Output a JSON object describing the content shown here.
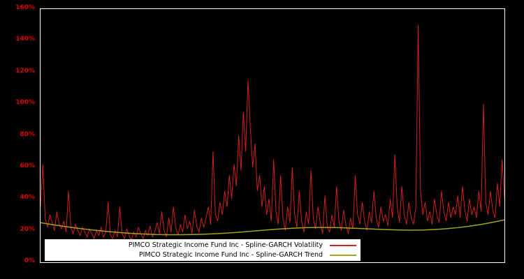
{
  "y_axis": {
    "ticks": [
      "0%",
      "20%",
      "40%",
      "60%",
      "80%",
      "100%",
      "120%",
      "140%",
      "160%"
    ],
    "tick_values": [
      0,
      20,
      40,
      60,
      80,
      100,
      120,
      140,
      160
    ],
    "min": 0,
    "max": 160,
    "color": "#dd0000"
  },
  "legend": {
    "background": "#ffffff",
    "position": "bottom-left"
  },
  "chart_data": {
    "type": "line",
    "title": "",
    "xlabel": "",
    "ylabel": "",
    "grid": false,
    "background": "#000000",
    "ylim": [
      0,
      160
    ],
    "y_unit": "percent",
    "legend_position": "bottom-left",
    "series": [
      {
        "name": "PIMCO Strategic Income Fund Inc - Spline-GARCH Volatility",
        "color": "#d21f1f",
        "stroke_width": 1,
        "values": [
          35,
          62,
          28,
          22,
          30,
          25,
          20,
          32,
          24,
          21,
          26,
          19,
          45,
          22,
          18,
          24,
          20,
          17,
          22,
          19,
          16,
          21,
          18,
          15,
          20,
          17,
          22,
          16,
          19,
          38,
          17,
          15,
          20,
          16,
          35,
          18,
          15,
          21,
          17,
          14,
          19,
          16,
          22,
          18,
          15,
          20,
          17,
          23,
          16,
          19,
          25,
          18,
          32,
          20,
          16,
          28,
          19,
          35,
          22,
          17,
          24,
          19,
          30,
          21,
          26,
          18,
          33,
          23,
          19,
          28,
          22,
          28,
          35,
          24,
          70,
          30,
          26,
          38,
          30,
          45,
          35,
          55,
          40,
          62,
          48,
          80,
          58,
          95,
          70,
          115,
          85,
          60,
          75,
          45,
          55,
          35,
          48,
          30,
          40,
          26,
          65,
          32,
          24,
          55,
          28,
          20,
          35,
          25,
          60,
          30,
          22,
          45,
          26,
          19,
          32,
          24,
          58,
          28,
          21,
          35,
          25,
          18,
          42,
          23,
          19,
          30,
          22,
          48,
          26,
          20,
          33,
          24,
          18,
          28,
          21,
          55,
          30,
          24,
          38,
          26,
          20,
          32,
          25,
          45,
          28,
          22,
          35,
          26,
          30,
          23,
          40,
          28,
          68,
          35,
          25,
          48,
          30,
          24,
          38,
          28,
          24,
          35,
          150,
          45,
          30,
          38,
          26,
          32,
          24,
          40,
          30,
          25,
          45,
          32,
          26,
          38,
          28,
          35,
          30,
          42,
          28,
          48,
          33,
          26,
          40,
          30,
          35,
          28,
          45,
          32,
          100,
          38,
          30,
          45,
          33,
          28,
          50,
          35,
          65,
          40
        ]
      },
      {
        "name": "PIMCO Strategic Income Fund Inc - Spline-GARCH Trend",
        "color": "#a8a418",
        "stroke_width": 1.5,
        "values": [
          25.0,
          23.8,
          22.7,
          21.7,
          20.8,
          20.0,
          19.3,
          18.7,
          18.2,
          17.8,
          17.5,
          17.4,
          17.4,
          17.5,
          17.7,
          18.0,
          18.4,
          18.9,
          19.5,
          20.1,
          20.7,
          21.2,
          21.6,
          21.9,
          22.0,
          22.0,
          21.8,
          21.5,
          21.2,
          20.9,
          20.6,
          20.4,
          20.3,
          20.4,
          20.7,
          21.2,
          21.9,
          22.8,
          23.9,
          25.3,
          26.8
        ]
      }
    ]
  }
}
